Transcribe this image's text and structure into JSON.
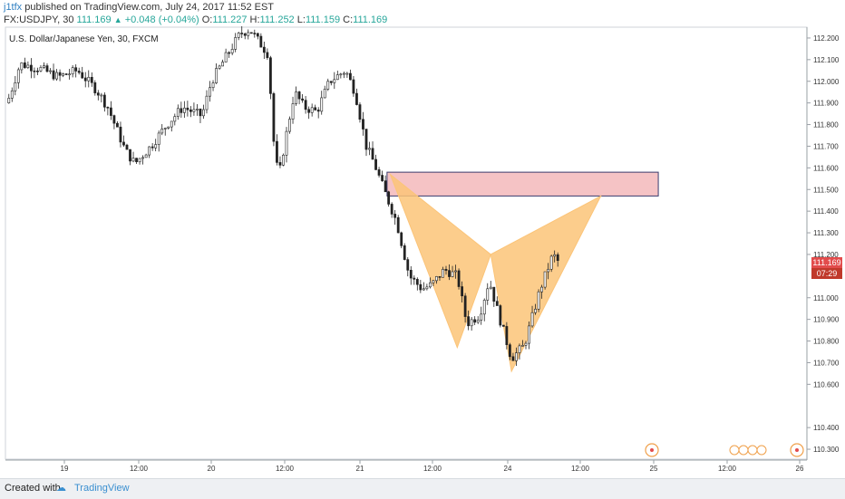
{
  "header": {
    "user": "j1tfx",
    "published": "published on TradingView.com, July 24, 2017 11:52 EST",
    "symbol": "FX:USDJPY, 30",
    "last": "111.169",
    "change": "+0.048 (+0.04%)",
    "o_label": "O:",
    "o_value": "111.227",
    "h_label": "H:",
    "h_value": "111.252",
    "l_label": "L:",
    "l_value": "111.159",
    "c_label": "C:",
    "c_value": "111.169"
  },
  "footer": {
    "created_with": "Created with",
    "brand": "TradingView"
  },
  "colors": {
    "candle": "#222222",
    "pattern": "#fbc478",
    "zone_fill": "#f3b8bb",
    "zone_border": "#3c3c6e",
    "price_tag": "#e24c4c"
  },
  "chart_data": {
    "type": "candlestick",
    "title": "U.S. Dollar/Japanese Yen, 30, FXCM",
    "y_ticks": [
      "112.200",
      "112.100",
      "112.000",
      "111.900",
      "111.800",
      "111.700",
      "111.600",
      "111.500",
      "111.400",
      "111.300",
      "111.200",
      "111.000",
      "110.900",
      "110.800",
      "110.700",
      "110.600",
      "110.400",
      "110.300"
    ],
    "x_ticks": [
      "19",
      "12:00",
      "20",
      "12:00",
      "21",
      "12:00",
      "24",
      "12:00",
      "25",
      "12:00",
      "26"
    ],
    "ylim": [
      110.25,
      112.25
    ],
    "current_price": "111.169",
    "countdown": "07:29",
    "close_path": [
      {
        "t": 0,
        "p": 111.9
      },
      {
        "t": 8,
        "p": 112.08
      },
      {
        "t": 20,
        "p": 112.06
      },
      {
        "t": 32,
        "p": 112.02
      },
      {
        "t": 44,
        "p": 112.05
      },
      {
        "t": 56,
        "p": 111.96
      },
      {
        "t": 63,
        "p": 111.88
      },
      {
        "t": 74,
        "p": 111.68
      },
      {
        "t": 80,
        "p": 111.62
      },
      {
        "t": 90,
        "p": 111.7
      },
      {
        "t": 100,
        "p": 111.8
      },
      {
        "t": 110,
        "p": 111.88
      },
      {
        "t": 122,
        "p": 111.84
      },
      {
        "t": 128,
        "p": 112.0
      },
      {
        "t": 136,
        "p": 112.1
      },
      {
        "t": 146,
        "p": 112.22
      },
      {
        "t": 152,
        "p": 112.24
      },
      {
        "t": 158,
        "p": 112.18
      },
      {
        "t": 164,
        "p": 112.12
      },
      {
        "t": 166,
        "p": 111.78
      },
      {
        "t": 170,
        "p": 111.55
      },
      {
        "t": 174,
        "p": 111.72
      },
      {
        "t": 180,
        "p": 111.95
      },
      {
        "t": 186,
        "p": 111.88
      },
      {
        "t": 194,
        "p": 111.86
      },
      {
        "t": 202,
        "p": 112.0
      },
      {
        "t": 212,
        "p": 112.05
      },
      {
        "t": 218,
        "p": 111.95
      },
      {
        "t": 225,
        "p": 111.7
      },
      {
        "t": 230,
        "p": 111.62
      },
      {
        "t": 236,
        "p": 111.5
      },
      {
        "t": 244,
        "p": 111.35
      },
      {
        "t": 252,
        "p": 111.1
      },
      {
        "t": 260,
        "p": 111.04
      },
      {
        "t": 266,
        "p": 111.06
      },
      {
        "t": 274,
        "p": 111.13
      },
      {
        "t": 282,
        "p": 111.1
      },
      {
        "t": 288,
        "p": 110.88
      },
      {
        "t": 296,
        "p": 110.92
      },
      {
        "t": 302,
        "p": 111.08
      },
      {
        "t": 308,
        "p": 110.92
      },
      {
        "t": 316,
        "p": 110.72
      },
      {
        "t": 324,
        "p": 110.78
      },
      {
        "t": 334,
        "p": 111.04
      },
      {
        "t": 338,
        "p": 111.12
      },
      {
        "t": 342,
        "p": 111.2
      },
      {
        "t": 345,
        "p": 111.169
      }
    ],
    "annotations": {
      "zone": {
        "price_top": 111.58,
        "price_bottom": 111.47,
        "t_start": 238,
        "t_end": 408
      },
      "pattern": [
        {
          "t": 240,
          "p": 111.57
        },
        {
          "t": 282,
          "p": 110.77
        },
        {
          "t": 303,
          "p": 111.2
        },
        {
          "t": 316,
          "p": 110.66
        },
        {
          "t": 372,
          "p": 111.47
        }
      ]
    }
  }
}
